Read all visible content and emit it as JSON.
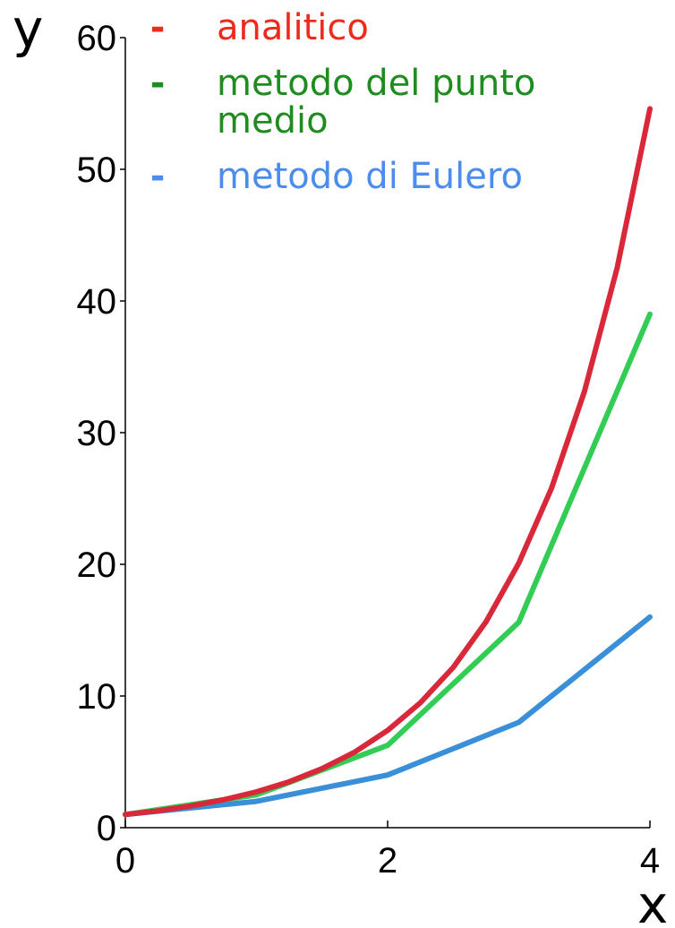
{
  "chart_data": {
    "type": "line",
    "title": "",
    "xlabel": "x",
    "ylabel": "y",
    "xlim": [
      0,
      4
    ],
    "ylim": [
      0,
      60
    ],
    "x_ticks": [
      "0",
      "2",
      "4"
    ],
    "y_ticks": [
      "0",
      "10",
      "20",
      "30",
      "40",
      "50",
      "60"
    ],
    "grid": false,
    "legend_position": "top-center",
    "series": [
      {
        "name": "analitico",
        "color": "#d9283a",
        "x": [
          0,
          0.25,
          0.5,
          0.75,
          1,
          1.25,
          1.5,
          1.75,
          2,
          2.25,
          2.5,
          2.75,
          3,
          3.25,
          3.5,
          3.75,
          4
        ],
        "y": [
          1,
          1.28,
          1.65,
          2.12,
          2.72,
          3.49,
          4.48,
          5.75,
          7.39,
          9.49,
          12.18,
          15.64,
          20.09,
          25.79,
          33.12,
          42.52,
          54.6
        ]
      },
      {
        "name": "metodo del punto medio",
        "color": "#33cc55",
        "x": [
          0,
          1,
          2,
          3,
          4
        ],
        "y": [
          1,
          2.5,
          6.25,
          15.6,
          39
        ]
      },
      {
        "name": "metodo di Eulero",
        "color": "#3a8fd9",
        "x": [
          0,
          1,
          2,
          3,
          4
        ],
        "y": [
          1,
          2,
          4,
          8,
          16
        ]
      }
    ],
    "legend": {
      "dash": "-",
      "entries": [
        {
          "label_lines": [
            "analitico"
          ],
          "color": "#ee2a1c"
        },
        {
          "label_lines": [
            "metodo del punto",
            "medio"
          ],
          "color": "#1e8c1e"
        },
        {
          "label_lines": [
            "metodo di Eulero"
          ],
          "color": "#4a8cf0"
        }
      ]
    }
  }
}
